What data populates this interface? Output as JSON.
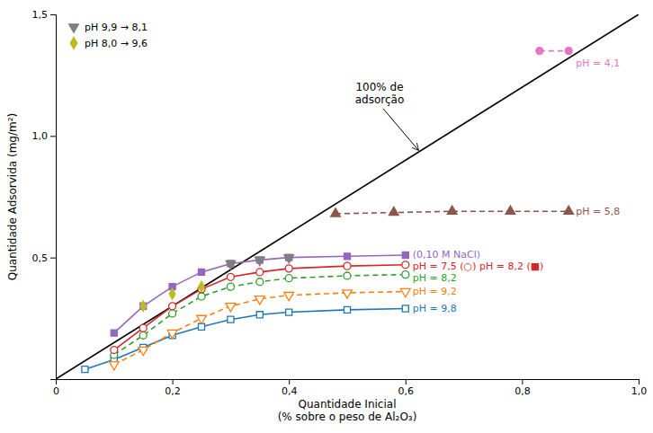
{
  "chart_data": {
    "type": "line",
    "xlabel": "Quantidade Inicial\n(% sobre o peso de Al₂O₃)",
    "ylabel": "Quantidade Adsorvida (mg/m²)",
    "xlim": [
      0,
      1.0
    ],
    "ylim": [
      0,
      1.5
    ],
    "xticks": [
      0,
      {
        "value": 0.2,
        "label": "0,2"
      },
      {
        "value": 0.4,
        "label": "0,4"
      },
      {
        "value": 0.6,
        "label": "0,6"
      },
      {
        "value": 0.8,
        "label": "0,8"
      },
      {
        "value": 1.0,
        "label": "1,0"
      }
    ],
    "yticks": [
      {
        "value": 0.5,
        "label": "0,5"
      },
      {
        "value": 1.0,
        "label": "1,0"
      },
      {
        "value": 1.5,
        "label": "1,5"
      }
    ],
    "grid": false,
    "legend": "upper left",
    "series": [
      {
        "color": "black",
        "line_style": "solid",
        "marker": "none",
        "x": [
          0,
          1.0
        ],
        "values": [
          0,
          1.5
        ]
      },
      {
        "name": "pH = 9,8",
        "line_style": "solid",
        "marker": "square-open",
        "x": [
          0.05,
          0.1,
          0.15,
          0.2,
          0.25,
          0.3,
          0.35,
          0.4,
          0.5,
          0.6
        ],
        "values": [
          0.04,
          0.08,
          0.13,
          0.18,
          0.215,
          0.245,
          0.265,
          0.275,
          0.285,
          0.29
        ]
      },
      {
        "name": "pH = 9,2",
        "line_style": "dashed",
        "marker": "triangle-down-open",
        "x": [
          0.1,
          0.15,
          0.2,
          0.25,
          0.3,
          0.35,
          0.4,
          0.5,
          0.6
        ],
        "values": [
          0.06,
          0.12,
          0.19,
          0.25,
          0.3,
          0.33,
          0.345,
          0.355,
          0.36
        ]
      },
      {
        "name": "pH = 8,2",
        "line_style": "dashed",
        "marker": "circle-open",
        "x": [
          0.1,
          0.15,
          0.2,
          0.25,
          0.3,
          0.35,
          0.4,
          0.5,
          0.6
        ],
        "values": [
          0.1,
          0.18,
          0.27,
          0.34,
          0.38,
          0.4,
          0.415,
          0.425,
          0.43
        ]
      },
      {
        "name": "pH = 7,5 (○)  pH = 8,2 (■)",
        "line_style": "solid",
        "marker": "circle-open",
        "x": [
          0.1,
          0.15,
          0.2,
          0.25,
          0.3,
          0.35,
          0.4,
          0.5,
          0.6
        ],
        "values": [
          0.12,
          0.21,
          0.3,
          0.37,
          0.42,
          0.44,
          0.455,
          0.465,
          0.47
        ]
      },
      {
        "name": "(0,10 M NaCl)",
        "line_style": "solid",
        "marker": "square",
        "x": [
          0.1,
          0.15,
          0.2,
          0.25,
          0.3,
          0.35,
          0.4,
          0.5,
          0.6
        ],
        "values": [
          0.19,
          0.3,
          0.38,
          0.44,
          0.475,
          0.49,
          0.5,
          0.505,
          0.51
        ]
      },
      {
        "name": "pH = 5,8",
        "line_style": "dashed",
        "marker": "triangle-up",
        "x": [
          0.48,
          0.58,
          0.68,
          0.78,
          0.88
        ],
        "values": [
          0.68,
          0.685,
          0.69,
          0.69,
          0.69
        ]
      },
      {
        "name": "pH = 4,1",
        "line_style": "dashed",
        "marker": "circle",
        "x": [
          0.83,
          0.88
        ],
        "values": [
          1.35,
          1.35
        ]
      },
      {
        "name": "pH 9,9 → 8,1",
        "line_style": "none",
        "marker": "triangle-down",
        "x": [
          0.3,
          0.35,
          0.4
        ],
        "values": [
          0.475,
          0.49,
          0.5
        ]
      },
      {
        "name": "pH 8,0 → 9,6",
        "line_style": "none",
        "marker": "diamond",
        "x": [
          0.15,
          0.2,
          0.25
        ],
        "values": [
          0.3,
          0.35,
          0.38
        ]
      }
    ],
    "annotations": [
      {
        "text": "100% de\nadsorção",
        "x": 0.625,
        "y": 0.935
      }
    ]
  }
}
